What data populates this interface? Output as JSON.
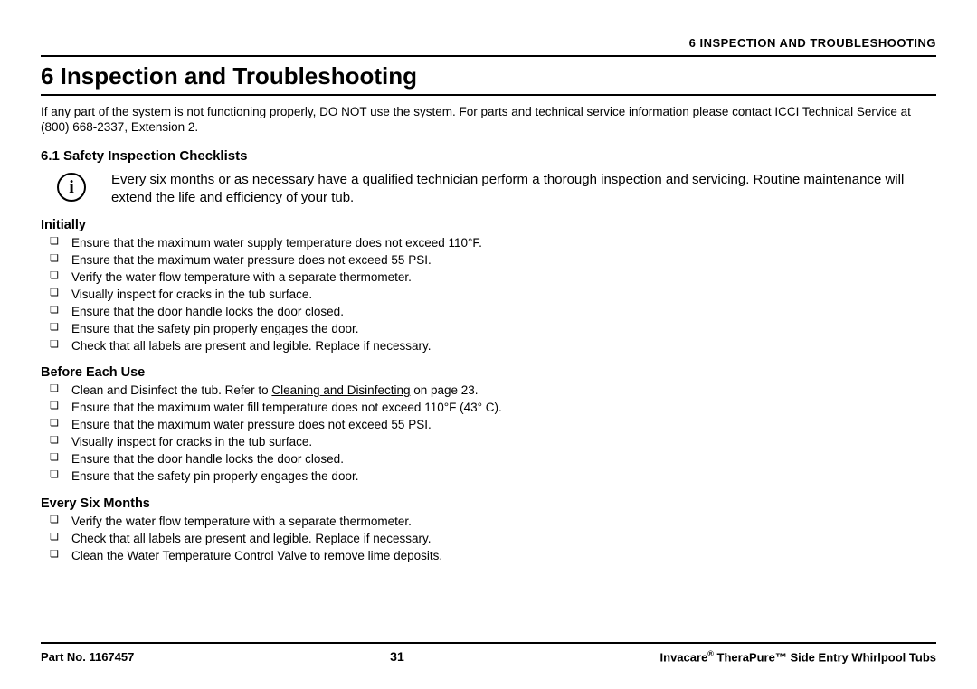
{
  "header": {
    "chapter_label": "6 INSPECTION AND TROUBLESHOOTING"
  },
  "title": "6 Inspection and Troubleshooting",
  "intro": "If any part of the system is not functioning properly, DO NOT use the system. For parts and technical service information please contact ICCI Technical Service at (800) 668-2337, Extension 2.",
  "section_6_1": {
    "heading": "6.1   Safety Inspection Checklists",
    "info_text": "Every six months or as necessary have a qualified technician perform a thorough inspection and servicing. Routine maintenance will extend the life and efficiency of your tub."
  },
  "groups": [
    {
      "heading": "Initially",
      "items": [
        "Ensure that the maximum water supply temperature does not exceed 110°F.",
        "Ensure that the maximum water pressure does not exceed 55 PSI.",
        "Verify the water flow temperature with a separate thermometer.",
        "Visually inspect for cracks in the tub surface.",
        "Ensure that the door handle locks the door closed.",
        "Ensure that the safety pin properly engages the door.",
        "Check that all labels are present and legible. Replace if necessary."
      ]
    },
    {
      "heading": "Before Each Use",
      "items": [
        "Clean and Disinfect the tub. Refer to <span class=\"underline\">Cleaning and Disinfecting</span> on page 23.",
        "Ensure that the maximum water fill temperature does not exceed 110°F (43° C).",
        "Ensure that the maximum water pressure does not exceed 55 PSI.",
        "Visually inspect for cracks in the tub surface.",
        "Ensure that the door handle locks the door closed.",
        "Ensure that the safety pin properly engages the door."
      ]
    },
    {
      "heading": "Every Six Months",
      "items": [
        "Verify the water flow temperature with a separate thermometer.",
        "Check that all labels are present and legible. Replace if necessary.",
        "Clean the Water Temperature Control Valve to remove lime deposits."
      ]
    }
  ],
  "footer": {
    "part_no": "Part No. 1167457",
    "page": "31",
    "product": "Invacare® TheraPure™ Side Entry Whirlpool Tubs"
  }
}
